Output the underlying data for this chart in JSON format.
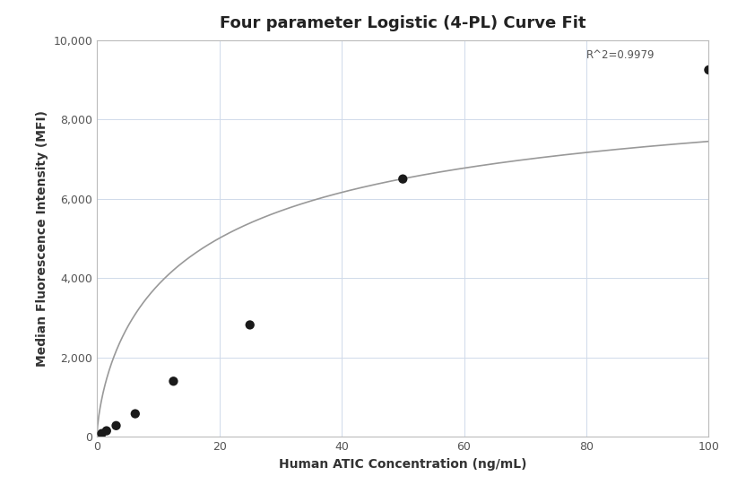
{
  "title": "Four parameter Logistic (4-PL) Curve Fit",
  "xlabel": "Human ATIC Concentration (ng/mL)",
  "ylabel": "Median Fluorescence Intensity (MFI)",
  "scatter_x": [
    0.78,
    1.56,
    3.13,
    6.25,
    12.5,
    25,
    50,
    100
  ],
  "scatter_y": [
    80,
    150,
    280,
    580,
    1400,
    2820,
    6500,
    9250
  ],
  "xlim": [
    0,
    100
  ],
  "ylim": [
    0,
    10000
  ],
  "yticks": [
    0,
    2000,
    4000,
    6000,
    8000,
    10000
  ],
  "ytick_labels": [
    "0",
    "2,000",
    "4,000",
    "6,000",
    "8,000",
    "10,000"
  ],
  "xticks": [
    0,
    20,
    40,
    60,
    80,
    100
  ],
  "r_squared": "R^2=0.9979",
  "r2_x": 80,
  "r2_y": 9780,
  "background_color": "#ffffff",
  "grid_color": "#d0daea",
  "scatter_color": "#1a1a1a",
  "line_color": "#999999",
  "title_fontsize": 13,
  "label_fontsize": 10,
  "tick_fontsize": 9,
  "scatter_size": 55,
  "4pl_A": 50,
  "4pl_B": 0.72,
  "4pl_C": 18.0,
  "4pl_D": 9600
}
